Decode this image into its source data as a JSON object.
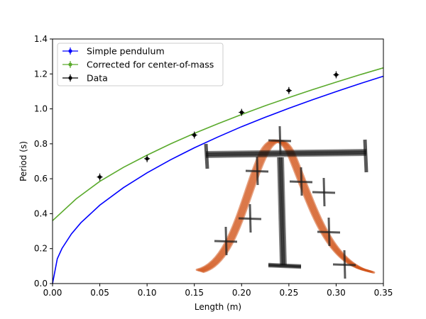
{
  "chart_data": {
    "type": "scatter",
    "xlabel": "Length (m)",
    "ylabel": "Period (s)",
    "xlim": [
      0.0,
      0.35
    ],
    "ylim": [
      0.0,
      1.4
    ],
    "x_ticks": [
      "0.00",
      "0.05",
      "0.10",
      "0.15",
      "0.20",
      "0.25",
      "0.30",
      "0.35"
    ],
    "y_ticks": [
      "0.0",
      "0.2",
      "0.4",
      "0.6",
      "0.8",
      "1.0",
      "1.2",
      "1.4"
    ],
    "legend_position": "top-left",
    "grid": false,
    "series": [
      {
        "name": "Simple pendulum",
        "kind": "curve",
        "color": "#0000ff",
        "x": [
          0.0,
          0.005,
          0.01,
          0.02,
          0.03,
          0.05,
          0.075,
          0.1,
          0.125,
          0.15,
          0.175,
          0.2,
          0.225,
          0.25,
          0.275,
          0.3,
          0.325,
          0.35
        ],
        "y": [
          0.0,
          0.142,
          0.201,
          0.284,
          0.348,
          0.449,
          0.549,
          0.634,
          0.709,
          0.777,
          0.839,
          0.898,
          0.952,
          1.003,
          1.052,
          1.099,
          1.144,
          1.187
        ]
      },
      {
        "name": "Corrected for center-of-mass",
        "kind": "curve",
        "color": "#5aaa2c",
        "x": [
          0.0,
          0.025,
          0.05,
          0.075,
          0.1,
          0.125,
          0.15,
          0.175,
          0.2,
          0.225,
          0.25,
          0.275,
          0.3,
          0.325,
          0.35
        ],
        "y": [
          0.36,
          0.485,
          0.585,
          0.665,
          0.735,
          0.8,
          0.86,
          0.915,
          0.968,
          1.018,
          1.065,
          1.11,
          1.153,
          1.195,
          1.235
        ]
      },
      {
        "name": "Data",
        "kind": "errorbar",
        "color": "#000000",
        "x": [
          0.05,
          0.1,
          0.15,
          0.2,
          0.25,
          0.3
        ],
        "y": [
          0.61,
          0.715,
          0.85,
          0.98,
          1.105,
          1.195
        ],
        "xerr": [
          0.003,
          0.003,
          0.003,
          0.003,
          0.003,
          0.003
        ],
        "yerr": [
          0.02,
          0.02,
          0.02,
          0.02,
          0.02,
          0.02
        ]
      }
    ]
  },
  "overlay": {
    "name": "hand-drawn pendulum frame sketch",
    "bar_color": "#111111",
    "curve_color": "#d2561c"
  }
}
